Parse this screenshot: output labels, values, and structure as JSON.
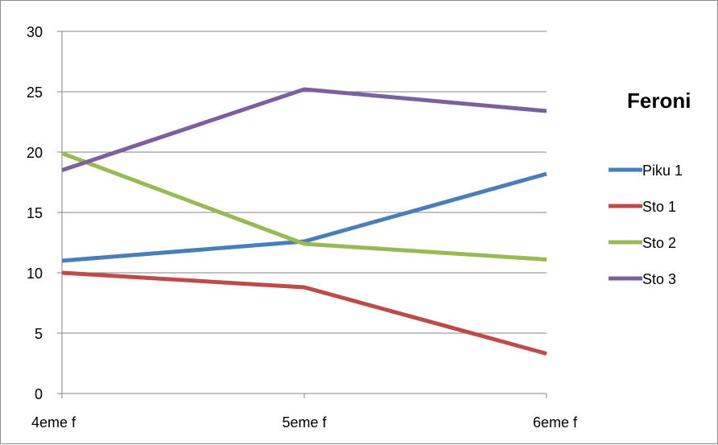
{
  "chart_data": {
    "type": "line",
    "title": "Feroni",
    "xlabel": "",
    "ylabel": "",
    "categories": [
      "4eme f",
      "5eme f",
      "6eme f"
    ],
    "ylim": [
      0,
      30
    ],
    "yticks": [
      0,
      5,
      10,
      15,
      20,
      25,
      30
    ],
    "grid": true,
    "legend_position": "right",
    "series": [
      {
        "name": "Piku 1",
        "color": "#4a7ebb",
        "values": [
          11.0,
          12.6,
          18.2
        ]
      },
      {
        "name": "Sto 1",
        "color": "#be4b48",
        "values": [
          10.0,
          8.8,
          3.3
        ]
      },
      {
        "name": "Sto 2",
        "color": "#98b954",
        "values": [
          19.9,
          12.4,
          11.1
        ]
      },
      {
        "name": "Sto 3",
        "color": "#7d5fa0",
        "values": [
          18.5,
          25.2,
          23.4
        ]
      }
    ]
  }
}
